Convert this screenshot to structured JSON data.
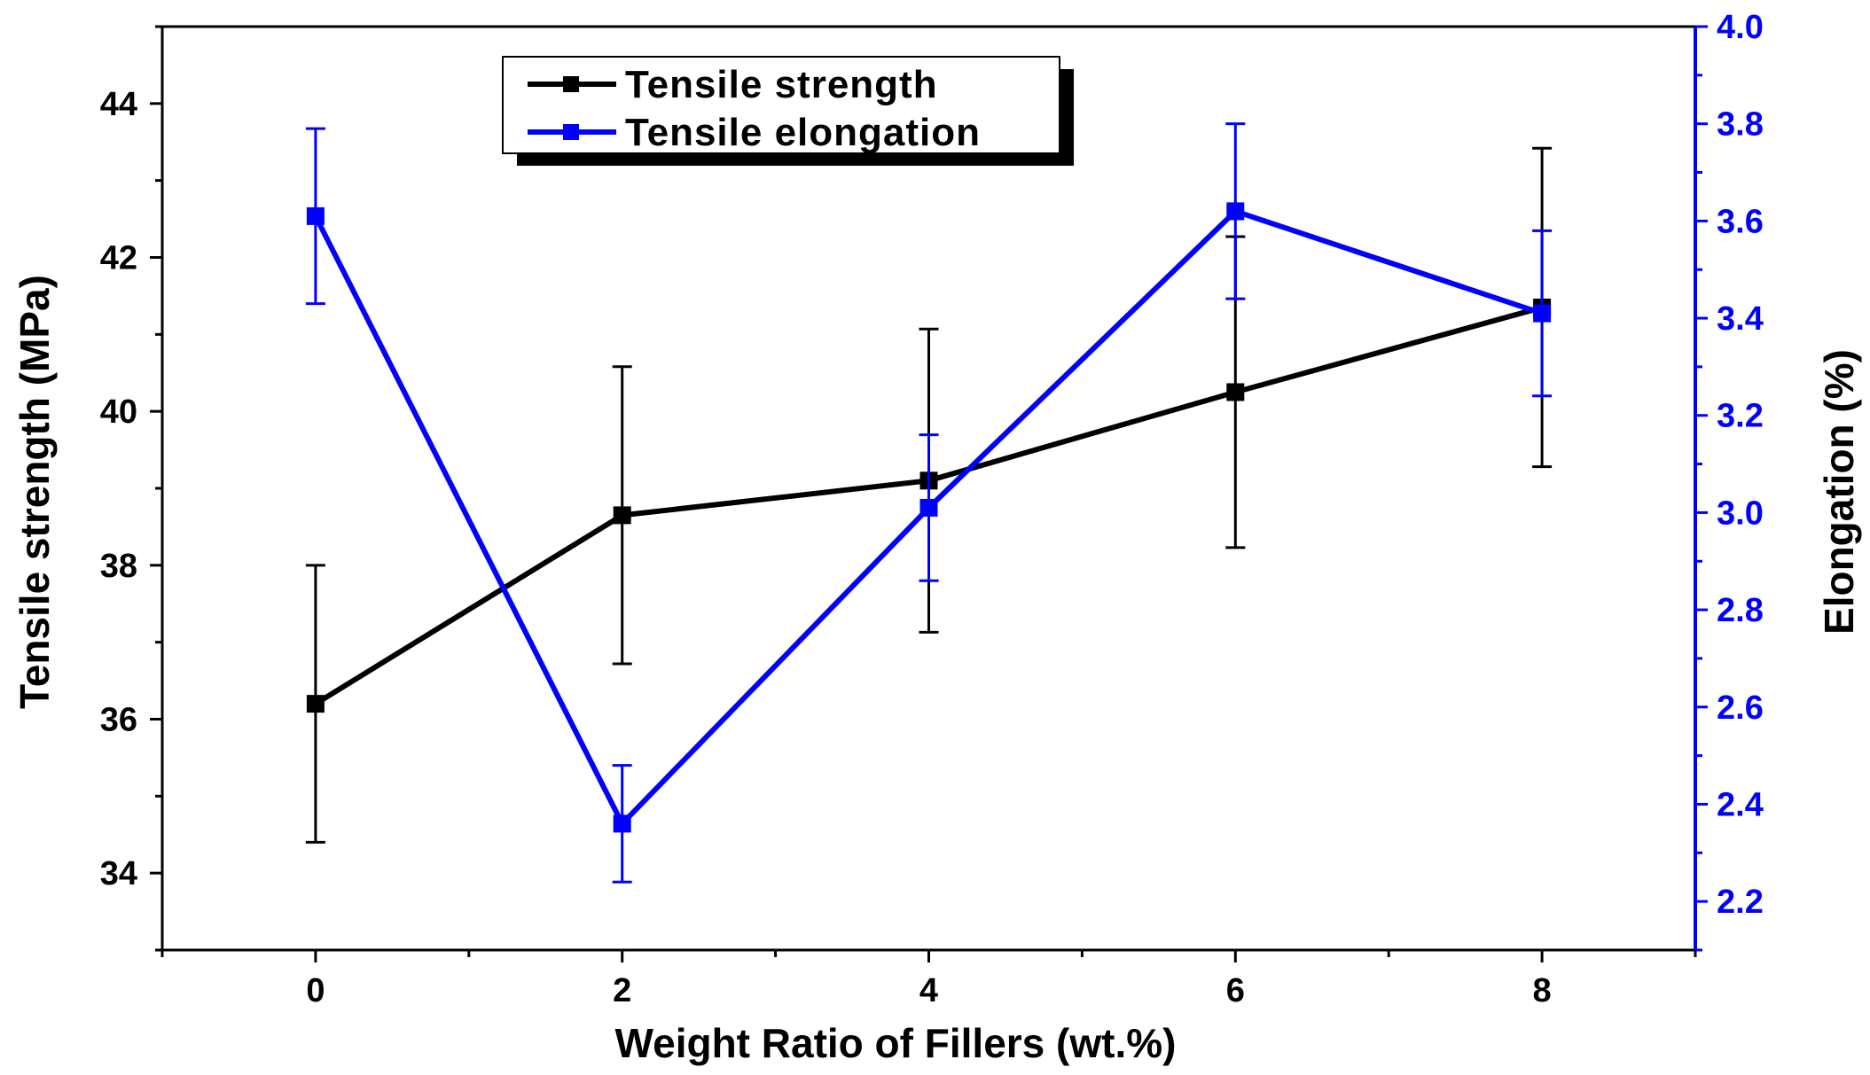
{
  "chart_data": {
    "type": "line",
    "xlabel": "Weight Ratio of Fillers (wt.%)",
    "ylabel_left": "Tensile strength (MPa)",
    "ylabel_right": "Elongation (%)",
    "xlim": [
      -1,
      9
    ],
    "ylim_left": [
      33,
      45
    ],
    "ylim_right": [
      2.1,
      4.0
    ],
    "x_ticks": [
      0,
      2,
      4,
      6,
      8
    ],
    "y_left_ticks": [
      34,
      36,
      38,
      40,
      42,
      44
    ],
    "y_right_ticks": [
      2.2,
      2.4,
      2.6,
      2.8,
      3.0,
      3.2,
      3.4,
      3.6,
      3.8,
      4.0
    ],
    "x_tick_labels": [
      "0",
      "2",
      "4",
      "6",
      "8"
    ],
    "y_left_tick_labels": [
      "34",
      "36",
      "38",
      "40",
      "42",
      "44"
    ],
    "y_right_tick_labels": [
      "2.2",
      "2.4",
      "2.6",
      "2.8",
      "3.0",
      "3.2",
      "3.4",
      "3.6",
      "3.8",
      "4.0"
    ],
    "legend_position": "top-left",
    "grid": false,
    "series": [
      {
        "name": "Tensile strength",
        "axis": "left",
        "color": "#000000",
        "x": [
          0,
          2,
          4,
          6,
          8
        ],
        "values": [
          36.2,
          38.65,
          39.1,
          40.25,
          41.35
        ],
        "error": [
          1.8,
          1.93,
          1.97,
          2.02,
          2.07
        ]
      },
      {
        "name": "Tensile elongation",
        "axis": "right",
        "color": "#0000ff",
        "x": [
          0,
          2,
          4,
          6,
          8
        ],
        "values": [
          3.61,
          2.36,
          3.01,
          3.62,
          3.41
        ],
        "error": [
          0.18,
          0.12,
          0.15,
          0.18,
          0.17
        ]
      }
    ]
  }
}
